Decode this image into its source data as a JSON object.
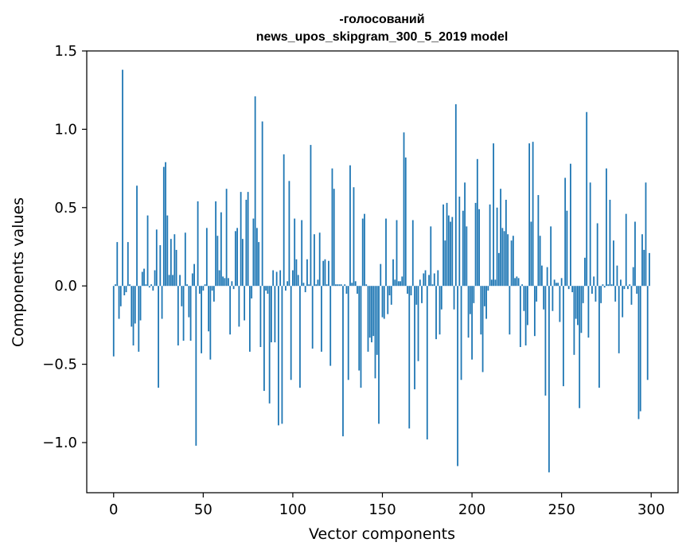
{
  "chart_data": {
    "type": "bar",
    "title_line1": "-голосований",
    "title_line2": "news_upos_skipgram_300_5_2019 model",
    "xlabel": "Vector components",
    "ylabel": "Components values",
    "xlim": [
      -15,
      315
    ],
    "ylim": [
      -1.32,
      1.5
    ],
    "xticks": [
      0,
      50,
      100,
      150,
      200,
      250,
      300
    ],
    "xtick_labels": [
      "0",
      "50",
      "100",
      "150",
      "200",
      "250",
      "300"
    ],
    "yticks": [
      -1.0,
      -0.5,
      0.0,
      0.5,
      1.0,
      1.5
    ],
    "ytick_labels": [
      "−1.0",
      "−0.5",
      "0.0",
      "0.5",
      "1.0",
      "1.5"
    ],
    "bar_color": "#1f77b4",
    "values": [
      -0.45,
      0.01,
      0.28,
      -0.21,
      -0.13,
      1.38,
      -0.06,
      -0.04,
      0.28,
      0.01,
      -0.26,
      -0.38,
      -0.24,
      0.64,
      -0.42,
      -0.22,
      0.09,
      0.11,
      0.01,
      0.45,
      -0.01,
      0.01,
      -0.03,
      0.1,
      0.36,
      -0.65,
      0.26,
      -0.21,
      0.76,
      0.79,
      0.45,
      0.07,
      0.3,
      0.07,
      0.33,
      0.23,
      -0.38,
      0.07,
      -0.13,
      -0.35,
      0.34,
      0.01,
      -0.2,
      -0.35,
      0.08,
      0.14,
      -1.02,
      0.54,
      -0.05,
      -0.43,
      -0.03,
      0.01,
      0.37,
      -0.29,
      -0.47,
      -0.03,
      -0.1,
      0.54,
      0.32,
      0.1,
      0.47,
      0.06,
      0.05,
      0.62,
      0.05,
      -0.31,
      0.03,
      -0.02,
      0.35,
      0.37,
      -0.26,
      0.6,
      0.3,
      -0.22,
      0.55,
      0.6,
      -0.42,
      -0.08,
      0.43,
      1.21,
      0.37,
      0.28,
      -0.39,
      1.05,
      -0.67,
      -0.03,
      -0.05,
      -0.75,
      -0.36,
      0.1,
      -0.36,
      0.09,
      -0.89,
      0.1,
      -0.88,
      0.84,
      -0.03,
      0.03,
      0.67,
      -0.6,
      0.1,
      0.43,
      0.17,
      0.07,
      -0.65,
      0.42,
      0.02,
      -0.04,
      0.17,
      0.01,
      0.9,
      -0.4,
      0.33,
      0.01,
      0.04,
      0.34,
      -0.42,
      0.16,
      0.17,
      0.01,
      0.16,
      -0.51,
      0.75,
      0.62,
      0.01,
      0.01,
      0.01,
      0.01,
      -0.96,
      0.01,
      -0.05,
      -0.6,
      0.77,
      0.02,
      0.63,
      0.03,
      -0.05,
      -0.54,
      -0.65,
      0.43,
      0.46,
      0.01,
      -0.42,
      -0.33,
      -0.36,
      -0.32,
      -0.59,
      -0.44,
      -0.88,
      0.14,
      -0.2,
      -0.21,
      0.43,
      -0.18,
      -0.06,
      -0.12,
      0.17,
      0.04,
      0.42,
      0.03,
      0.03,
      0.06,
      0.98,
      0.82,
      -0.05,
      -0.91,
      -0.06,
      0.42,
      -0.66,
      -0.12,
      -0.48,
      0.04,
      -0.11,
      0.08,
      0.1,
      -0.98,
      0.07,
      0.38,
      0.01,
      0.08,
      -0.34,
      0.1,
      -0.31,
      -0.15,
      0.52,
      0.29,
      0.53,
      0.45,
      0.41,
      0.44,
      -0.15,
      1.16,
      -1.15,
      0.57,
      -0.6,
      0.48,
      0.66,
      0.38,
      -0.33,
      -0.18,
      -0.47,
      -0.11,
      0.53,
      0.81,
      0.49,
      -0.31,
      -0.55,
      -0.13,
      -0.21,
      -0.03,
      0.52,
      0.04,
      0.91,
      0.04,
      0.5,
      0.21,
      0.62,
      0.37,
      0.35,
      0.55,
      0.33,
      -0.31,
      0.29,
      0.32,
      0.05,
      0.06,
      0.05,
      -0.39,
      0.01,
      -0.16,
      -0.38,
      -0.25,
      0.91,
      0.41,
      0.92,
      -0.32,
      -0.1,
      0.58,
      0.32,
      0.13,
      -0.15,
      -0.7,
      0.12,
      -1.19,
      0.38,
      -0.16,
      0.04,
      0.02,
      0.02,
      -0.23,
      0.05,
      -0.64,
      0.69,
      0.48,
      -0.02,
      0.78,
      -0.04,
      -0.44,
      -0.21,
      -0.25,
      -0.78,
      -0.3,
      -0.11,
      0.18,
      1.11,
      -0.33,
      0.66,
      -0.05,
      0.06,
      -0.1,
      0.4,
      -0.65,
      -0.11,
      0.01,
      -0.01,
      0.75,
      0.01,
      0.55,
      0.01,
      0.29,
      -0.1,
      0.13,
      -0.43,
      0.04,
      -0.2,
      -0.02,
      0.46,
      -0.02,
      0.01,
      -0.12,
      0.12,
      0.41,
      -0.05,
      -0.85,
      -0.8,
      0.33,
      0.23,
      0.66,
      -0.6,
      0.21
    ]
  }
}
